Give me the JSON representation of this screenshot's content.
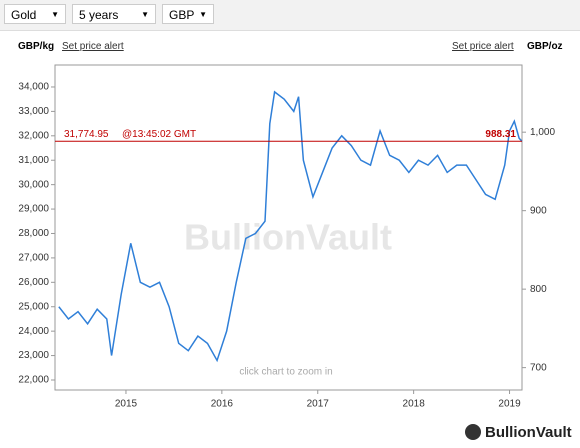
{
  "controls": {
    "metal": "Gold",
    "period": "5 years",
    "currency": "GBP"
  },
  "left_unit": "GBP/kg",
  "right_unit": "GBP/oz",
  "left_alert": "Set price alert",
  "right_alert": "Set price alert",
  "watermark": "BullionVault",
  "zoom_hint": "click chart to zoom in",
  "logo": "BullionVault",
  "chart_data": {
    "type": "line",
    "x": [
      2014.3,
      2014.4,
      2014.5,
      2014.6,
      2014.7,
      2014.8,
      2014.85,
      2014.95,
      2015.05,
      2015.15,
      2015.25,
      2015.35,
      2015.45,
      2015.55,
      2015.65,
      2015.75,
      2015.85,
      2015.95,
      2016.05,
      2016.15,
      2016.25,
      2016.35,
      2016.45,
      2016.5,
      2016.55,
      2016.65,
      2016.75,
      2016.8,
      2016.85,
      2016.95,
      2017.05,
      2017.15,
      2017.25,
      2017.35,
      2017.45,
      2017.55,
      2017.65,
      2017.75,
      2017.85,
      2017.95,
      2018.05,
      2018.15,
      2018.25,
      2018.35,
      2018.45,
      2018.55,
      2018.65,
      2018.75,
      2018.85,
      2018.95,
      2019.0,
      2019.05,
      2019.1,
      2019.13
    ],
    "series": [
      {
        "color": "#2f7fd8",
        "values": [
          25000,
          24500,
          24800,
          24300,
          24900,
          24500,
          23000,
          25500,
          27600,
          26000,
          25800,
          26000,
          25000,
          23500,
          23200,
          23800,
          23500,
          22800,
          24000,
          26000,
          27800,
          28000,
          28500,
          32500,
          33800,
          33500,
          33000,
          33600,
          31000,
          29500,
          30500,
          31500,
          32000,
          31600,
          31000,
          30800,
          32200,
          31200,
          31000,
          30500,
          31000,
          30800,
          31200,
          30500,
          30800,
          30800,
          30200,
          29600,
          29400,
          30800,
          32200,
          32600,
          31900,
          31775
        ]
      }
    ],
    "xlim": [
      2014.26,
      2019.13
    ],
    "xticks": [
      2015,
      2016,
      2017,
      2018,
      2019
    ],
    "ylim": [
      21590,
      34900
    ],
    "yticks": [
      {
        "value": 22000,
        "label": "22,000"
      },
      {
        "value": 23000,
        "label": "23,000"
      },
      {
        "value": 24000,
        "label": "24,000"
      },
      {
        "value": 25000,
        "label": "25,000"
      },
      {
        "value": 26000,
        "label": "26,000"
      },
      {
        "value": 27000,
        "label": "27,000"
      },
      {
        "value": 28000,
        "label": "28,000"
      },
      {
        "value": 29000,
        "label": "29,000"
      },
      {
        "value": 30000,
        "label": "30,000"
      },
      {
        "value": 31000,
        "label": "31,000"
      },
      {
        "value": 32000,
        "label": "32,000"
      },
      {
        "value": 33000,
        "label": "33,000"
      },
      {
        "value": 34000,
        "label": "34,000"
      }
    ],
    "y2lim": [
      671.5,
      1085.6
    ],
    "y2ticks": [
      700,
      800,
      900,
      {
        "value": 1000,
        "label": "1,000"
      }
    ],
    "price_line": {
      "value": 31774.95,
      "label": "31,774.95",
      "time": "@13:45:02 GMT",
      "color": "#c00000",
      "value_oz": 988.31,
      "label_oz": "988.31"
    }
  }
}
